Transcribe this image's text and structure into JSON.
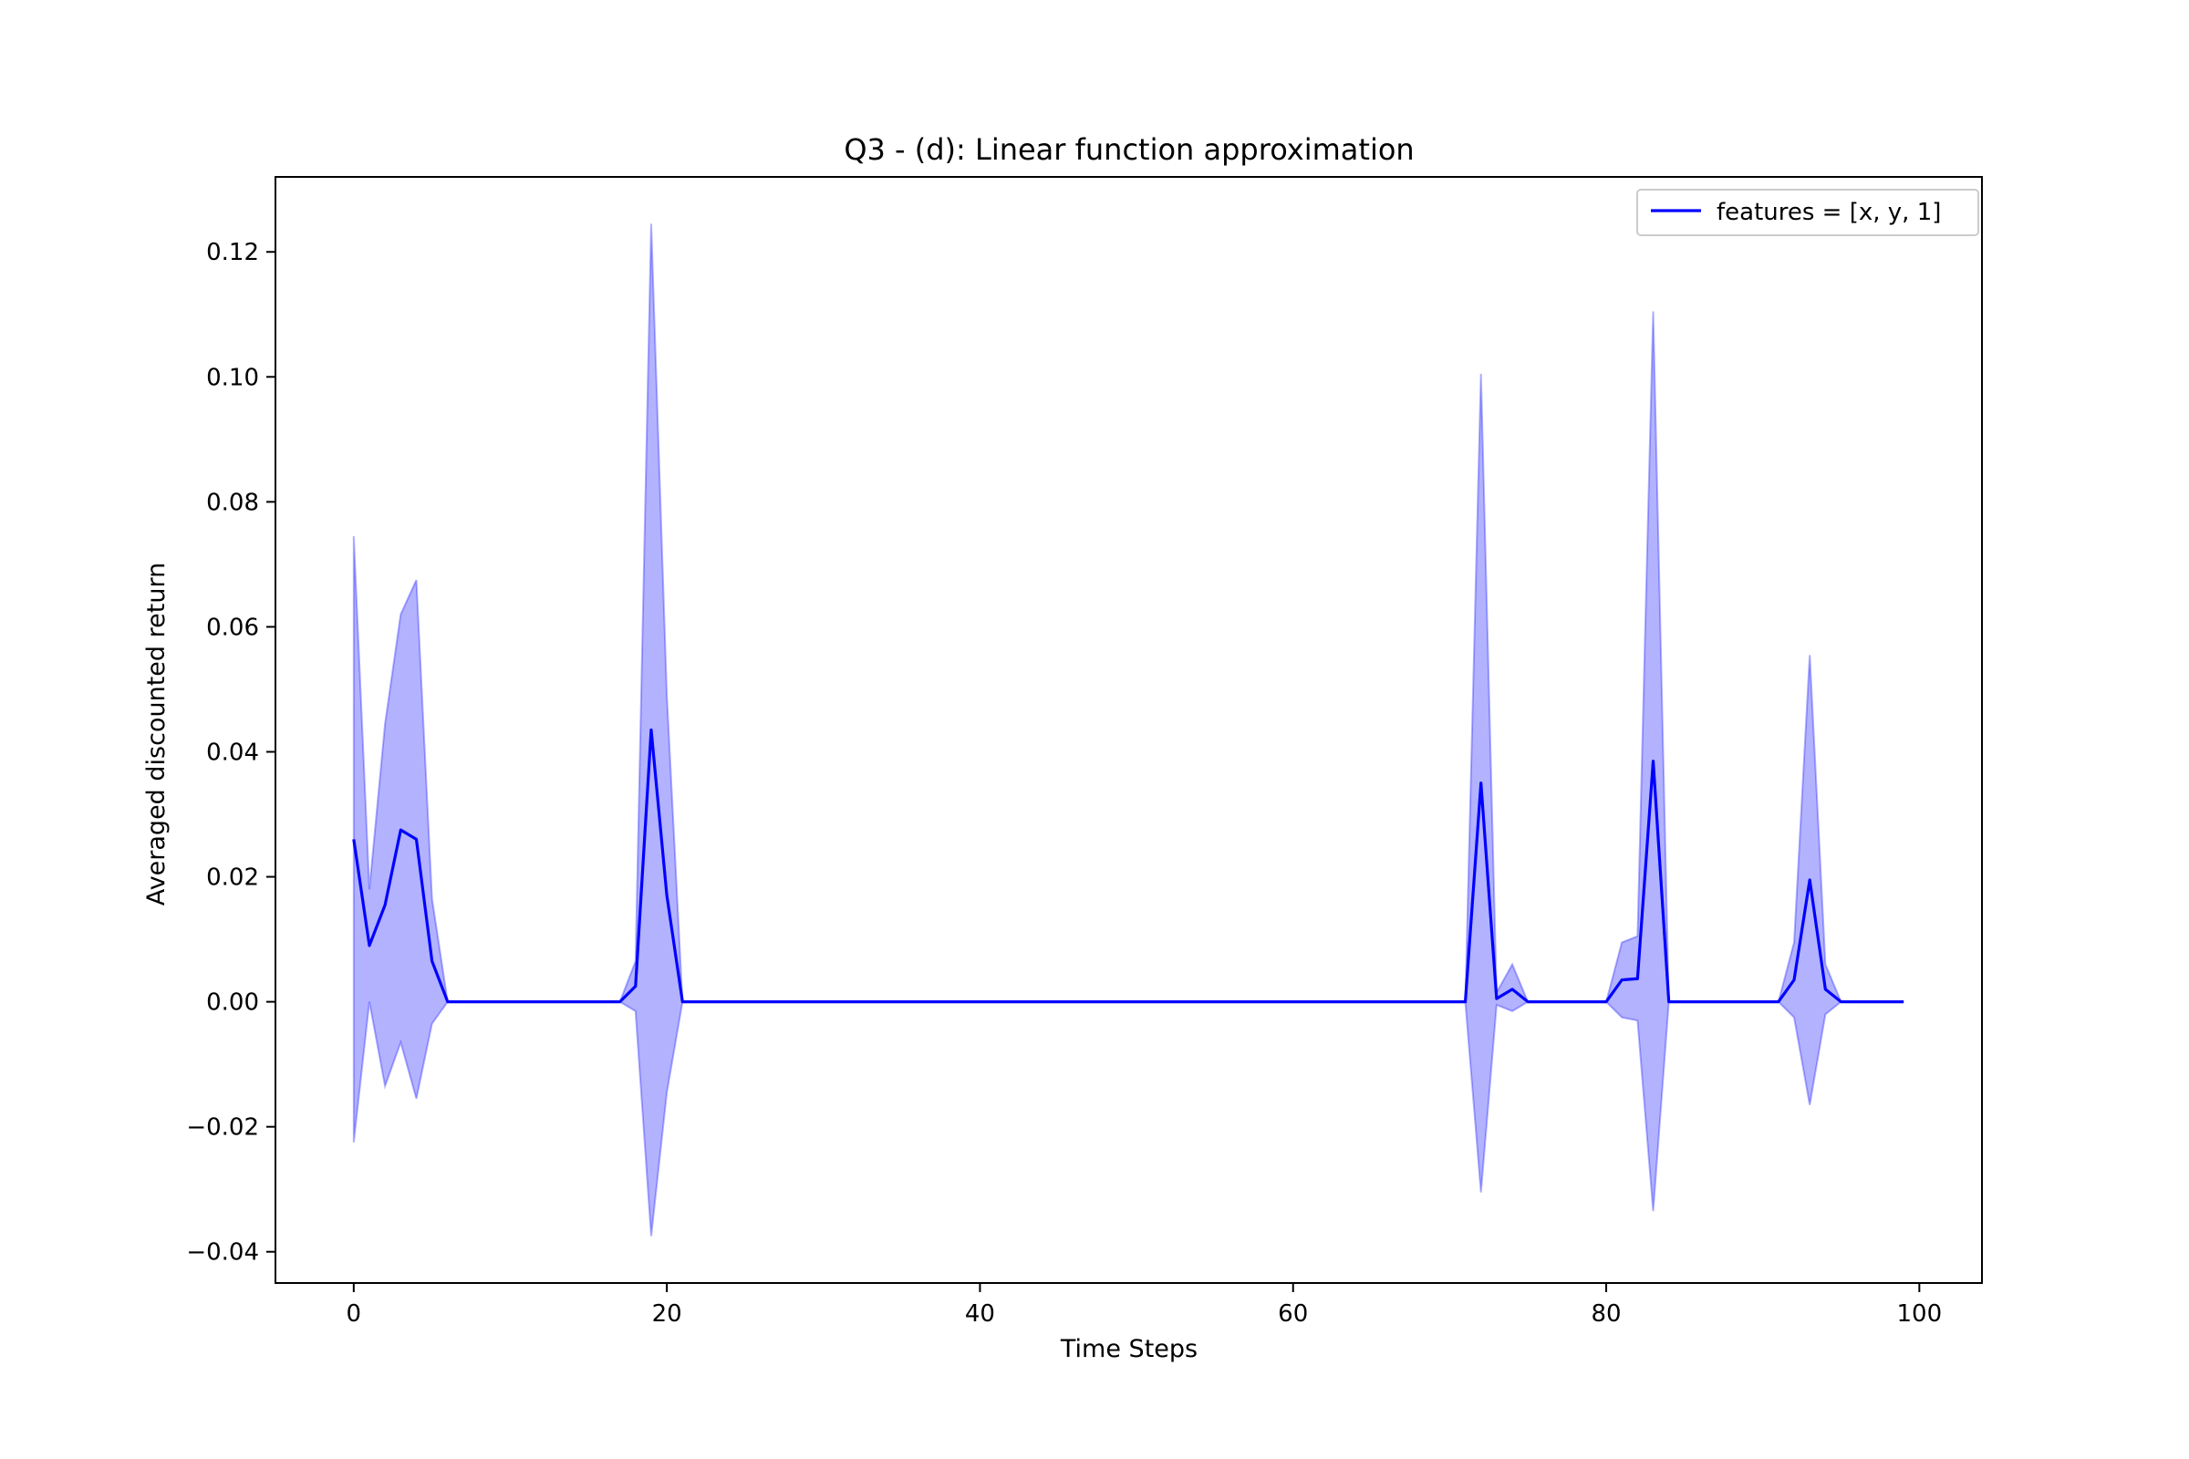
{
  "chart_data": {
    "type": "line",
    "title": "Q3 - (d): Linear function approximation",
    "xlabel": "Time Steps",
    "ylabel": "Averaged discounted return",
    "xlim": [
      -5,
      104
    ],
    "ylim": [
      -0.045,
      0.132
    ],
    "xticks": [
      0,
      20,
      40,
      60,
      80,
      100
    ],
    "xtick_labels": [
      "0",
      "20",
      "40",
      "60",
      "80",
      "100"
    ],
    "yticks": [
      -0.04,
      -0.02,
      0.0,
      0.02,
      0.04,
      0.06,
      0.08,
      0.1,
      0.12
    ],
    "ytick_labels": [
      "−0.04",
      "−0.02",
      "0.00",
      "0.02",
      "0.04",
      "0.06",
      "0.08",
      "0.10",
      "0.12"
    ],
    "grid": false,
    "legend": {
      "position": "top-right"
    },
    "colors": {
      "line": "#0000ff",
      "band": "#0000ff"
    },
    "series": [
      {
        "name": "features = [x, y, 1]",
        "x": [
          0,
          1,
          2,
          3,
          4,
          5,
          6,
          7,
          8,
          9,
          10,
          11,
          12,
          13,
          14,
          15,
          16,
          17,
          18,
          19,
          20,
          21,
          22,
          23,
          24,
          25,
          26,
          27,
          28,
          29,
          30,
          31,
          32,
          33,
          34,
          35,
          36,
          37,
          38,
          39,
          40,
          41,
          42,
          43,
          44,
          45,
          46,
          47,
          48,
          49,
          50,
          51,
          52,
          53,
          54,
          55,
          56,
          57,
          58,
          59,
          60,
          61,
          62,
          63,
          64,
          65,
          66,
          67,
          68,
          69,
          70,
          71,
          72,
          73,
          74,
          75,
          76,
          77,
          78,
          79,
          80,
          81,
          82,
          83,
          84,
          85,
          86,
          87,
          88,
          89,
          90,
          91,
          92,
          93,
          94,
          95,
          96,
          97,
          98,
          99
        ],
        "mean": [
          0.026,
          0.009,
          0.0155,
          0.0275,
          0.026,
          0.0065,
          0,
          0,
          0,
          0,
          0,
          0,
          0,
          0,
          0,
          0,
          0,
          0,
          0.0025,
          0.0435,
          0.017,
          0,
          0,
          0,
          0,
          0,
          0,
          0,
          0,
          0,
          0,
          0,
          0,
          0,
          0,
          0,
          0,
          0,
          0,
          0,
          0,
          0,
          0,
          0,
          0,
          0,
          0,
          0,
          0,
          0,
          0,
          0,
          0,
          0,
          0,
          0,
          0,
          0,
          0,
          0,
          0,
          0,
          0,
          0,
          0,
          0,
          0,
          0,
          0,
          0,
          0,
          0,
          0.035,
          0.0005,
          0.002,
          0,
          0,
          0,
          0,
          0,
          0,
          0.0035,
          0.0037,
          0.0385,
          0,
          0,
          0,
          0,
          0,
          0,
          0,
          0,
          0.0035,
          0.0195,
          0.002,
          0,
          0,
          0,
          0,
          0
        ],
        "upper": [
          0.0745,
          0.018,
          0.0445,
          0.062,
          0.0675,
          0.0165,
          0,
          0,
          0,
          0,
          0,
          0,
          0,
          0,
          0,
          0,
          0,
          0,
          0.0065,
          0.1245,
          0.049,
          0,
          0,
          0,
          0,
          0,
          0,
          0,
          0,
          0,
          0,
          0,
          0,
          0,
          0,
          0,
          0,
          0,
          0,
          0,
          0,
          0,
          0,
          0,
          0,
          0,
          0,
          0,
          0,
          0,
          0,
          0,
          0,
          0,
          0,
          0,
          0,
          0,
          0,
          0,
          0,
          0,
          0,
          0,
          0,
          0,
          0,
          0,
          0,
          0,
          0,
          0,
          0.1005,
          0.0015,
          0.006,
          0,
          0,
          0,
          0,
          0,
          0,
          0.0095,
          0.0105,
          0.1105,
          0,
          0,
          0,
          0,
          0,
          0,
          0,
          0,
          0.0095,
          0.0555,
          0.006,
          0,
          0,
          0,
          0,
          0
        ],
        "lower": [
          -0.0225,
          0,
          -0.0135,
          -0.0065,
          -0.0155,
          -0.0035,
          0,
          0,
          0,
          0,
          0,
          0,
          0,
          0,
          0,
          0,
          0,
          0,
          -0.0015,
          -0.0375,
          -0.0145,
          0,
          0,
          0,
          0,
          0,
          0,
          0,
          0,
          0,
          0,
          0,
          0,
          0,
          0,
          0,
          0,
          0,
          0,
          0,
          0,
          0,
          0,
          0,
          0,
          0,
          0,
          0,
          0,
          0,
          0,
          0,
          0,
          0,
          0,
          0,
          0,
          0,
          0,
          0,
          0,
          0,
          0,
          0,
          0,
          0,
          0,
          0,
          0,
          0,
          0,
          0,
          -0.0305,
          -0.0005,
          -0.0015,
          0,
          0,
          0,
          0,
          0,
          0,
          -0.0025,
          -0.003,
          -0.0335,
          0,
          0,
          0,
          0,
          0,
          0,
          0,
          0,
          -0.0025,
          -0.0165,
          -0.002,
          0,
          0,
          0,
          0,
          0
        ]
      }
    ]
  }
}
